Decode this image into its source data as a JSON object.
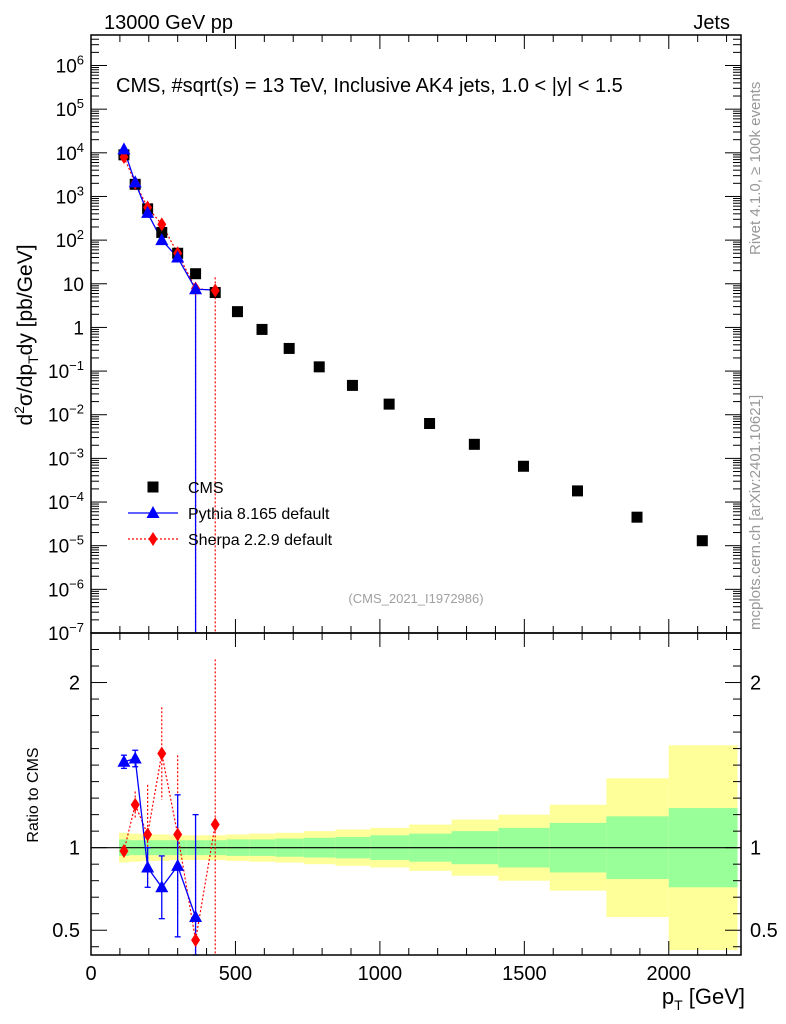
{
  "header": {
    "left": "13000 GeV pp",
    "right": "Jets"
  },
  "side": {
    "rivet": "Rivet 4.1.0, ≥ 100k events",
    "mcplots": "mcplots.cern.ch [arXiv:2401.10621]"
  },
  "analysis_id": "(CMS_2021_I1972986)",
  "colors": {
    "cms": "#000000",
    "pythia": "#0000ff",
    "sherpa": "#ff0000",
    "band_inner": "#99ff99",
    "band_outer": "#ffff99"
  },
  "chart_data": [
    {
      "type": "scatter",
      "scale": "log",
      "title": "CMS, #sqrt(s) = 13 TeV, Inclusive AK4 jets, 1.0 < |y| < 1.5",
      "xlabel": "p_T [GeV]",
      "ylabel": "d²σ/dp_T dy [pb/GeV]",
      "xlim": [
        0,
        2250
      ],
      "ylim": [
        1e-07,
        5000000.0
      ],
      "y_tick_labels": [
        "10^-7",
        "10^-6",
        "10^-5",
        "10^-4",
        "10^-3",
        "10^-2",
        "10^-1",
        "1",
        "10",
        "10^2",
        "10^3",
        "10^4",
        "10^5",
        "10^6"
      ],
      "legend": [
        "CMS",
        "Pythia 8.165 default",
        "Sherpa 2.2.9 default"
      ],
      "legend_position": "bottom-left",
      "series": [
        {
          "name": "CMS",
          "marker": "square",
          "x": [
            114,
            153,
            196,
            245,
            300,
            362,
            430,
            507,
            592,
            686,
            790,
            905,
            1032,
            1172,
            1327,
            1497,
            1684,
            1890,
            2116
          ],
          "values": [
            9000,
            1900,
            520,
            150,
            50,
            17,
            6.3,
            2.3,
            0.9,
            0.33,
            0.125,
            0.047,
            0.0175,
            0.0063,
            0.0021,
            0.00066,
            0.00018,
            4.5e-05,
            1.3e-05
          ]
        },
        {
          "name": "Pythia 8.165 default",
          "marker": "triangle",
          "x": [
            114,
            153,
            196,
            245,
            300,
            362
          ],
          "values": [
            12000,
            2100,
            420,
            100,
            40,
            7.5
          ]
        },
        {
          "name": "Sherpa 2.2.9 default",
          "marker": "diamond",
          "x": [
            114,
            153,
            196,
            245,
            300,
            362,
            430
          ],
          "values": [
            8000,
            2050,
            560,
            230,
            50,
            7.8,
            7.0
          ]
        }
      ]
    },
    {
      "type": "scatter",
      "title": "",
      "xlabel": "p_T [GeV]",
      "ylabel": "Ratio to CMS",
      "xlim": [
        0,
        2250
      ],
      "ylim": [
        0.35,
        2.3
      ],
      "x_tick_labels": [
        "0",
        "500",
        "1000",
        "1500",
        "2000"
      ],
      "y_tick_labels": [
        "0.5",
        "1",
        "2"
      ],
      "bands": {
        "edges": [
          97,
          133,
          174,
          220,
          272,
          330,
          395,
          468,
          548,
          638,
          737,
          846,
          967,
          1101,
          1248,
          1410,
          1588,
          1784,
          2000,
          2238
        ],
        "inner": [
          0.05,
          0.045,
          0.045,
          0.045,
          0.045,
          0.045,
          0.045,
          0.05,
          0.05,
          0.055,
          0.06,
          0.065,
          0.075,
          0.085,
          0.1,
          0.12,
          0.15,
          0.19,
          0.24
        ],
        "outer": [
          0.09,
          0.085,
          0.08,
          0.08,
          0.075,
          0.075,
          0.075,
          0.08,
          0.085,
          0.09,
          0.1,
          0.11,
          0.12,
          0.14,
          0.17,
          0.2,
          0.26,
          0.42,
          0.62
        ]
      },
      "series": [
        {
          "name": "Pythia 8.165 default",
          "x": [
            114,
            153,
            196,
            245,
            300,
            362
          ],
          "values": [
            1.52,
            1.54,
            0.88,
            0.76,
            0.89,
            0.58
          ],
          "err": [
            0.04,
            0.05,
            0.12,
            0.19,
            0.43,
            0.62
          ]
        },
        {
          "name": "Sherpa 2.2.9 default",
          "x": [
            114,
            153,
            196,
            245,
            300,
            362,
            430
          ],
          "values": [
            0.98,
            1.26,
            1.08,
            1.57,
            1.08,
            0.44,
            1.14
          ],
          "err": [
            0.03,
            0.08,
            0.3,
            0.28,
            0.48,
            0.5,
            1.0
          ]
        }
      ]
    }
  ]
}
